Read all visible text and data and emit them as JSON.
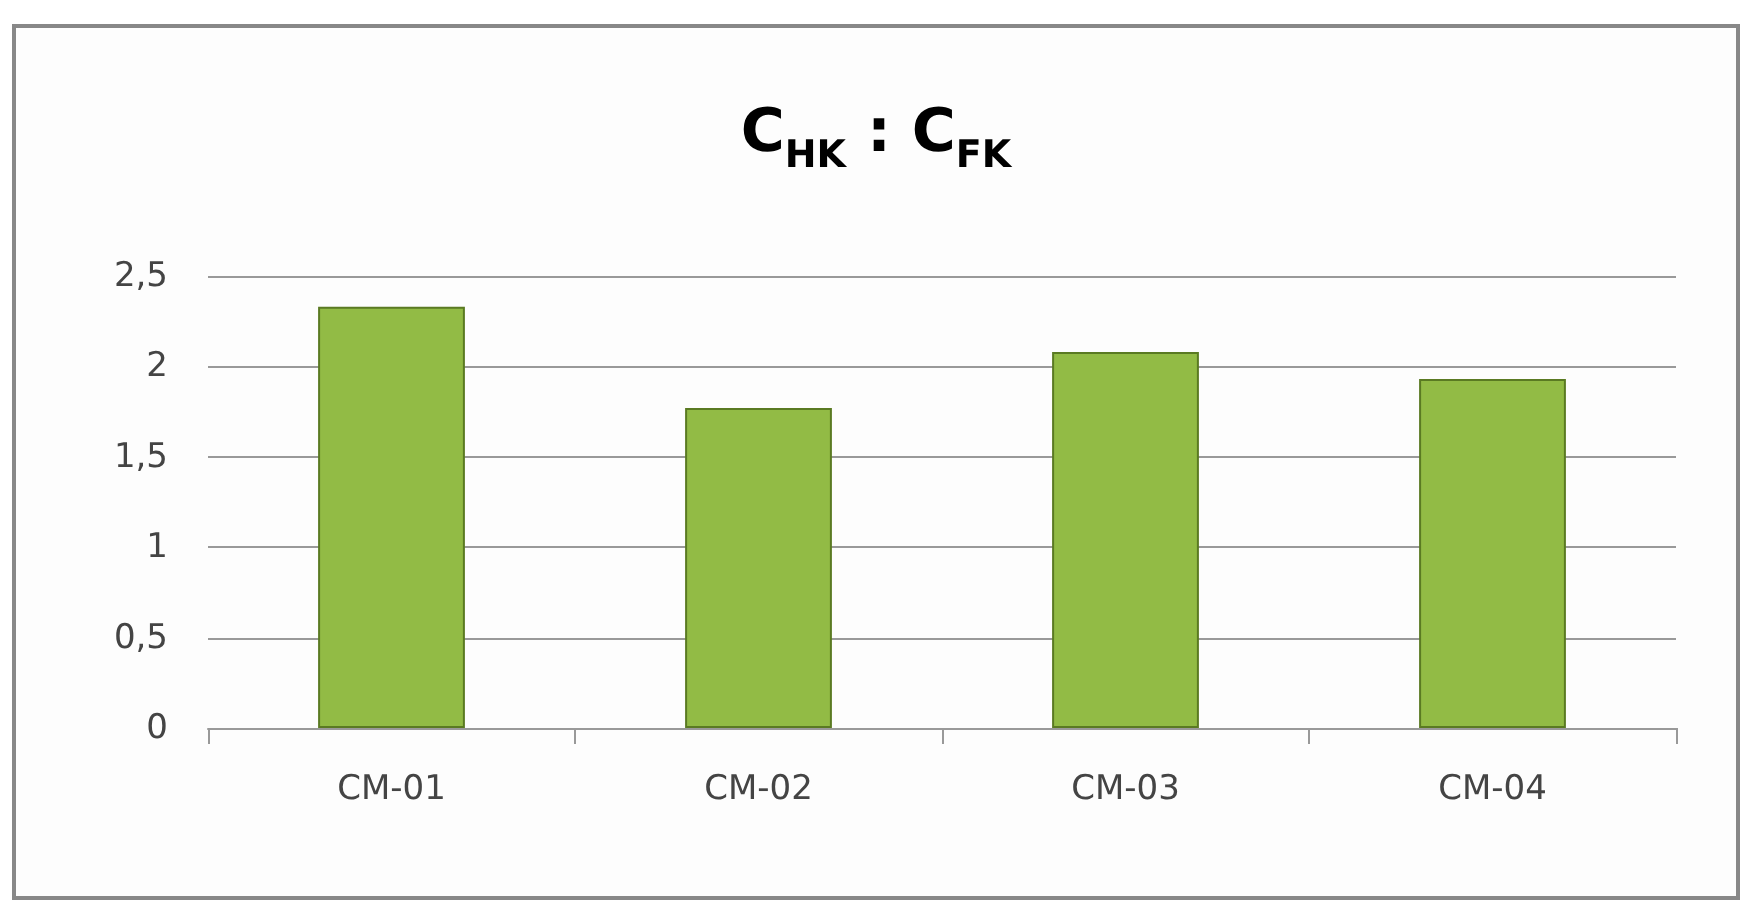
{
  "chart_data": {
    "type": "bar",
    "title": "C$_{HK}$ : C$_{FK}$",
    "categories": [
      "CM-01",
      "CM-02",
      "CM-03",
      "CM-04"
    ],
    "values": [
      2.33,
      1.77,
      2.08,
      1.93
    ],
    "color": "#92bb45",
    "ylim": [
      0,
      2.5
    ],
    "yticks": [
      0,
      {
        "value": 0.5,
        "label": "0,5"
      },
      1,
      {
        "value": 1.5,
        "label": "1,5"
      },
      2,
      {
        "value": 2.5,
        "label": "2,5"
      }
    ],
    "grid": "y"
  }
}
